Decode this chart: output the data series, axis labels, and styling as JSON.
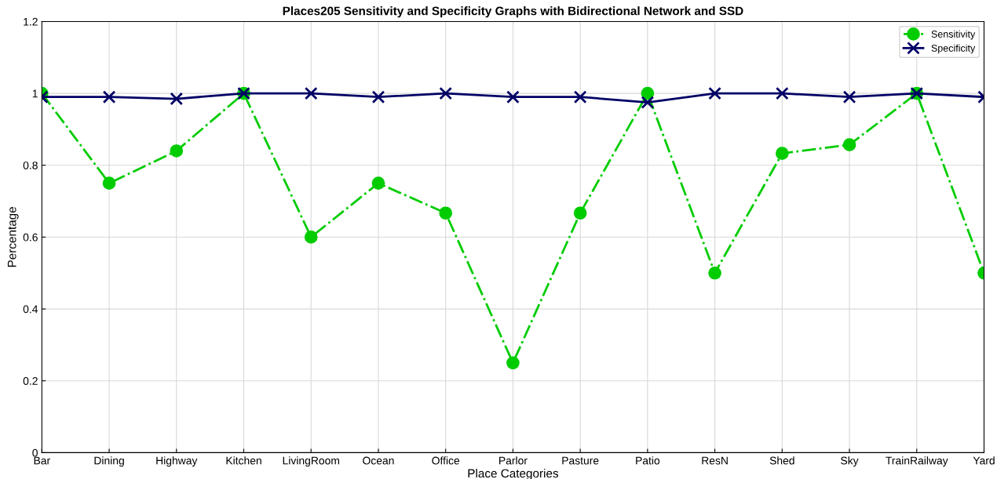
{
  "chart_data": {
    "type": "line",
    "title": "Places205 Sensitivity and Specificity Graphs with Bidirectional Network and SSD",
    "xlabel": "Place Categories",
    "ylabel": "Percentage",
    "categories": [
      "Bar",
      "Dining",
      "Highway",
      "Kitchen",
      "LivingRoom",
      "Ocean",
      "Office",
      "Parlor",
      "Pasture",
      "Patio",
      "ResN",
      "Shed",
      "Sky",
      "TrainRailway",
      "Yard"
    ],
    "series": [
      {
        "name": "Sensitivity",
        "color": "#00cc00",
        "marker": "circle",
        "line_style": "dashdot",
        "values": [
          1.0,
          0.75,
          0.84,
          1.0,
          0.6,
          0.75,
          0.667,
          0.25,
          0.667,
          1.0,
          0.5,
          0.833,
          0.857,
          1.0,
          0.5
        ]
      },
      {
        "name": "Specificity",
        "color": "#000066",
        "marker": "cross",
        "line_style": "solid",
        "values": [
          0.99,
          0.99,
          0.985,
          1.0,
          1.0,
          0.99,
          1.0,
          0.99,
          0.99,
          0.975,
          1.0,
          1.0,
          0.99,
          1.0,
          0.99
        ]
      }
    ],
    "ylim": [
      0,
      1.2
    ],
    "yticks": [
      0,
      0.2,
      0.4,
      0.6,
      0.8,
      1,
      1.2
    ],
    "grid": true,
    "legend": "top right"
  }
}
